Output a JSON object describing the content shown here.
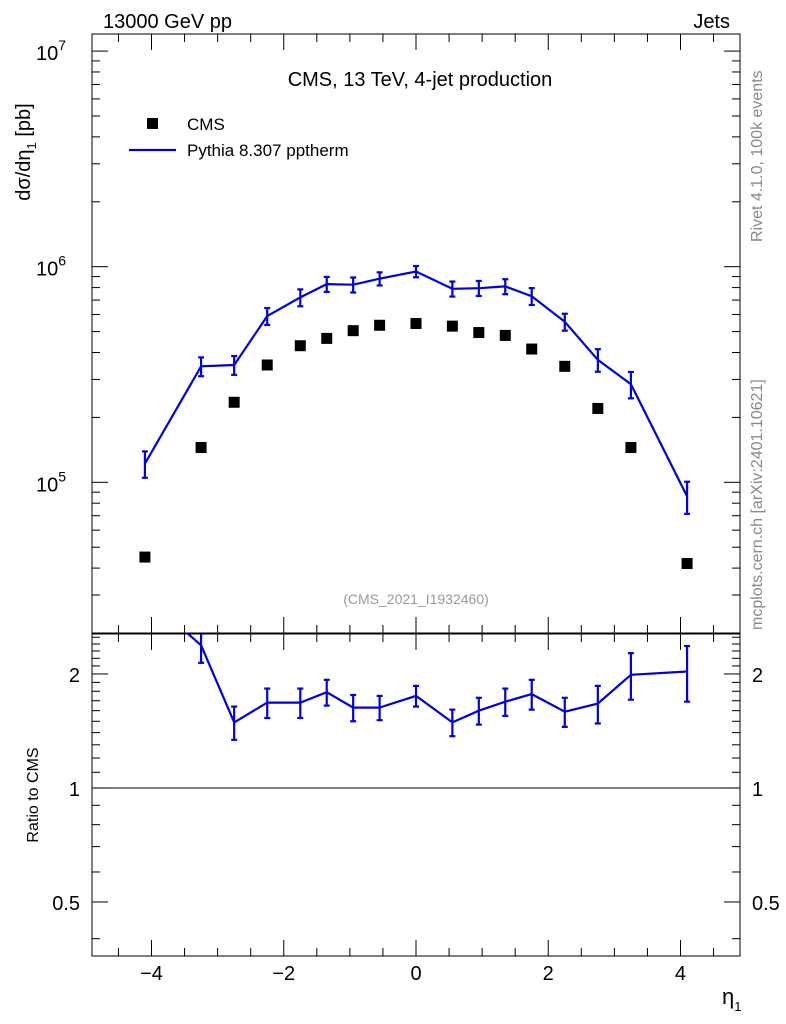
{
  "header": {
    "left": "13000 GeV pp",
    "right": "Jets"
  },
  "side_labels": {
    "top": "Rivet 4.1.0,  100k events",
    "bottom": "mcplots.cern.ch [arXiv:2401.10621]"
  },
  "colors": {
    "mc": "#0000dd",
    "data": "#000000",
    "watermark": "#999999",
    "side": "#888888"
  },
  "chart_data": {
    "type": "scatter",
    "title": "CMS, 13 TeV, 4-jet production",
    "watermark": "(CMS_2021_I1932460)",
    "xlabel_main": "η",
    "xlabel_sub": "1",
    "ylabel_prefix": "dσ/dη",
    "ylabel_sub": "1",
    "ylabel_suffix": " [pb]",
    "ratio_ylabel": "Ratio to CMS",
    "xlim": [
      -4.9,
      4.9
    ],
    "ylim": [
      20000,
      12000000
    ],
    "ratio_ylim": [
      0.36,
      2.55
    ],
    "x_ticks": [
      -4,
      -2,
      0,
      2,
      4
    ],
    "x_tick_labels": [
      "−4",
      "−2",
      "0",
      "2",
      "4"
    ],
    "y_ticks": [
      100000,
      1000000,
      10000000
    ],
    "y_tick_mantissa": [
      "10",
      "10",
      "10"
    ],
    "y_tick_exponent": [
      "5",
      "6",
      "7"
    ],
    "ratio_ticks": [
      0.5,
      1,
      2
    ],
    "ratio_tick_labels": [
      "0.5",
      "1",
      "2"
    ],
    "legend": {
      "data": "CMS",
      "mc": "Pythia 8.307 pptherm"
    },
    "series": [
      {
        "name": "CMS",
        "x": [
          -4.1,
          -3.25,
          -2.75,
          -2.25,
          -1.75,
          -1.35,
          -0.95,
          -0.55,
          0,
          0.55,
          0.95,
          1.35,
          1.75,
          2.25,
          2.75,
          3.25,
          4.1
        ],
        "values": [
          45000,
          145000,
          235000,
          350000,
          430000,
          465000,
          505000,
          535000,
          545000,
          530000,
          495000,
          480000,
          415000,
          345000,
          220000,
          145000,
          42000
        ]
      },
      {
        "name": "Pythia 8.307 pptherm",
        "x": [
          -4.1,
          -3.25,
          -2.75,
          -2.25,
          -1.75,
          -1.35,
          -0.95,
          -0.55,
          0,
          0.55,
          0.95,
          1.35,
          1.75,
          2.25,
          2.75,
          3.25,
          4.1
        ],
        "values": [
          122000,
          345000,
          350000,
          590000,
          720000,
          830000,
          825000,
          880000,
          950000,
          790000,
          795000,
          810000,
          730000,
          555000,
          370000,
          285000,
          86000
        ],
        "err_rel": [
          0.14,
          0.1,
          0.1,
          0.09,
          0.09,
          0.08,
          0.08,
          0.07,
          0.06,
          0.08,
          0.08,
          0.08,
          0.09,
          0.09,
          0.12,
          0.14,
          0.17
        ]
      }
    ],
    "ratio": {
      "x": [
        -3.25,
        -2.75,
        -2.25,
        -1.75,
        -1.35,
        -0.95,
        -0.55,
        0,
        0.55,
        0.95,
        1.35,
        1.75,
        2.25,
        2.75,
        3.25,
        4.1
      ],
      "values": [
        2.38,
        1.49,
        1.68,
        1.68,
        1.79,
        1.63,
        1.63,
        1.75,
        1.49,
        1.6,
        1.69,
        1.77,
        1.59,
        1.67,
        1.99,
        2.03
      ],
      "err": [
        0.24,
        0.15,
        0.15,
        0.15,
        0.14,
        0.13,
        0.12,
        0.11,
        0.12,
        0.13,
        0.14,
        0.16,
        0.14,
        0.19,
        0.28,
        0.34
      ],
      "start_x": -3.5,
      "start_value": 2.6
    }
  }
}
